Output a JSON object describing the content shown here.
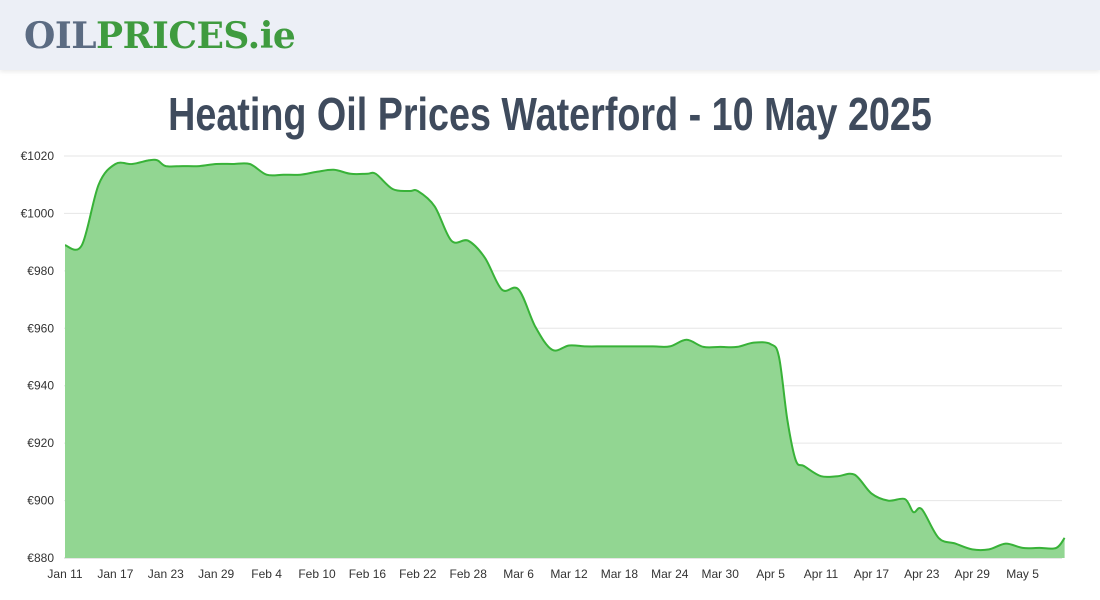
{
  "header": {
    "logo_part1": "OIL",
    "logo_part2": "PRICES",
    "logo_part3": ".ie"
  },
  "page": {
    "title": "Heating Oil Prices Waterford - 10 May 2025"
  },
  "colors": {
    "line": "#38b238",
    "fill": "#92d692",
    "grid": "#e6e6e6",
    "logo_grey": "#5b6b82",
    "logo_green": "#3f9b3f",
    "title": "#3f4b5d"
  },
  "chart_data": {
    "type": "area",
    "title": "",
    "xlabel": "",
    "ylabel": "",
    "ylim": [
      880,
      1020
    ],
    "yticks": [
      880,
      900,
      920,
      940,
      960,
      980,
      1000,
      1020
    ],
    "ytick_labels": [
      "€880",
      "€900",
      "€920",
      "€940",
      "€960",
      "€980",
      "€1000",
      "€1020"
    ],
    "xtick_labels": [
      "Jan 11",
      "Jan 17",
      "Jan 23",
      "Jan 29",
      "Feb 4",
      "Feb 10",
      "Feb 16",
      "Feb 22",
      "Feb 28",
      "Mar 6",
      "Mar 12",
      "Mar 18",
      "Mar 24",
      "Mar 30",
      "Apr 5",
      "Apr 11",
      "Apr 17",
      "Apr 23",
      "Apr 29",
      "May 5"
    ],
    "grid": true,
    "legend": "none",
    "series": [
      {
        "x": [
          "Jan 11",
          "Jan 13",
          "Jan 15",
          "Jan 17",
          "Jan 19",
          "Jan 21",
          "Jan 22",
          "Jan 23",
          "Jan 25",
          "Jan 27",
          "Jan 29",
          "Jan 31",
          "Feb 2",
          "Feb 4",
          "Feb 6",
          "Feb 8",
          "Feb 10",
          "Feb 12",
          "Feb 14",
          "Feb 16",
          "Feb 17",
          "Feb 19",
          "Feb 21",
          "Feb 22",
          "Feb 24",
          "Feb 26",
          "Feb 28",
          "Mar 2",
          "Mar 4",
          "Mar 6",
          "Mar 8",
          "Mar 10",
          "Mar 12",
          "Mar 14",
          "Mar 16",
          "Mar 18",
          "Mar 20",
          "Mar 22",
          "Mar 24",
          "Mar 26",
          "Mar 28",
          "Mar 30",
          "Apr 1",
          "Apr 3",
          "Apr 5",
          "Apr 6",
          "Apr 7",
          "Apr 8",
          "Apr 9",
          "Apr 11",
          "Apr 13",
          "Apr 15",
          "Apr 17",
          "Apr 19",
          "Apr 21",
          "Apr 22",
          "Apr 23",
          "Apr 25",
          "Apr 27",
          "Apr 29",
          "May 1",
          "May 3",
          "May 5",
          "May 7",
          "May 9",
          "May 10"
        ],
        "values": [
          988.9,
          988.9,
          1010,
          1017.2,
          1017.2,
          1018.5,
          1018.5,
          1016.5,
          1016.5,
          1016.5,
          1017.2,
          1017.2,
          1017.2,
          1013.5,
          1013.5,
          1013.5,
          1014.5,
          1015.2,
          1013.8,
          1013.8,
          1013.8,
          1008.5,
          1007.8,
          1007.8,
          1002.5,
          990.5,
          990.5,
          984.5,
          973.5,
          973.5,
          960.5,
          952.5,
          954,
          953.7,
          953.7,
          953.7,
          953.7,
          953.7,
          953.7,
          956,
          953.5,
          953.5,
          953.5,
          955,
          954.5,
          950,
          928,
          914,
          912,
          908.5,
          908.5,
          909,
          902.5,
          900,
          900.5,
          896,
          897,
          887,
          885,
          883,
          883,
          885,
          883.5,
          883.5,
          883.5,
          887
        ]
      }
    ]
  }
}
